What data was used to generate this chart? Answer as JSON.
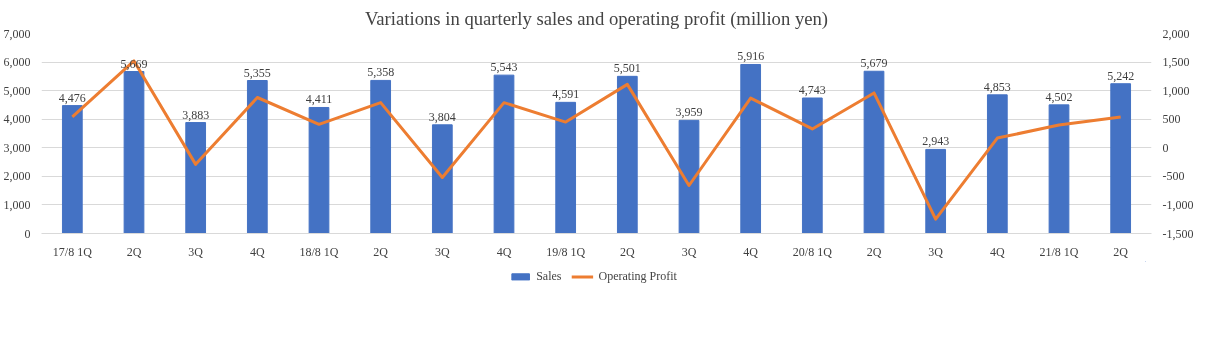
{
  "chart_data": {
    "type": "bar",
    "title": "Variations in quarterly sales and operating profit (million yen)",
    "categories": [
      "17/8 1Q",
      "2Q",
      "3Q",
      "4Q",
      "18/8 1Q",
      "2Q",
      "3Q",
      "4Q",
      "19/8 1Q",
      "2Q",
      "3Q",
      "4Q",
      "20/8 1Q",
      "2Q",
      "3Q",
      "4Q",
      "21/8 1Q",
      "2Q"
    ],
    "series": [
      {
        "name": "Sales",
        "color": "#4472c4",
        "values": [
          4476,
          5669,
          3883,
          5355,
          4411,
          5358,
          3804,
          5543,
          4591,
          5501,
          3959,
          5916,
          4743,
          5679,
          2943,
          4853,
          4502,
          5242
        ],
        "value_labels": [
          "4,476",
          "5,669",
          "3,883",
          "5,355",
          "4,411",
          "5,358",
          "3,804",
          "5,543",
          "4,591",
          "5,501",
          "3,959",
          "5,916",
          "4,743",
          "5,679",
          "2,943",
          "4,853",
          "4,502",
          "5,242"
        ]
      },
      {
        "name": "Operating Profit",
        "type": "line",
        "axis": "y2",
        "color": "#ed7d31",
        "values": [
          540,
          1520,
          -290,
          880,
          410,
          790,
          -520,
          790,
          450,
          1110,
          -660,
          870,
          330,
          960,
          -1250,
          170,
          400,
          540
        ]
      }
    ],
    "ylim": [
      0,
      7000
    ],
    "yticks": [
      {
        "value": 0,
        "label": "0"
      },
      {
        "value": 1000,
        "label": "1,000"
      },
      {
        "value": 2000,
        "label": "2,000"
      },
      {
        "value": 3000,
        "label": "3,000"
      },
      {
        "value": 4000,
        "label": "4,000"
      },
      {
        "value": 5000,
        "label": "5,000"
      },
      {
        "value": 6000,
        "label": "6,000"
      },
      {
        "value": 7000,
        "label": "7,000"
      }
    ],
    "y2lim": [
      -1500,
      2000
    ],
    "y2ticks": [
      {
        "value": -1500,
        "label": "-1,500"
      },
      {
        "value": -1000,
        "label": "-1,000"
      },
      {
        "value": -500,
        "label": "-500"
      },
      {
        "value": 0,
        "label": "0"
      },
      {
        "value": 500,
        "label": "500"
      },
      {
        "value": 1000,
        "label": "1,000"
      },
      {
        "value": 1500,
        "label": "1,500"
      },
      {
        "value": 2000,
        "label": "2,000"
      }
    ],
    "grid": "y",
    "legend": "bottom",
    "marker": "none",
    "line_style": "solid"
  }
}
